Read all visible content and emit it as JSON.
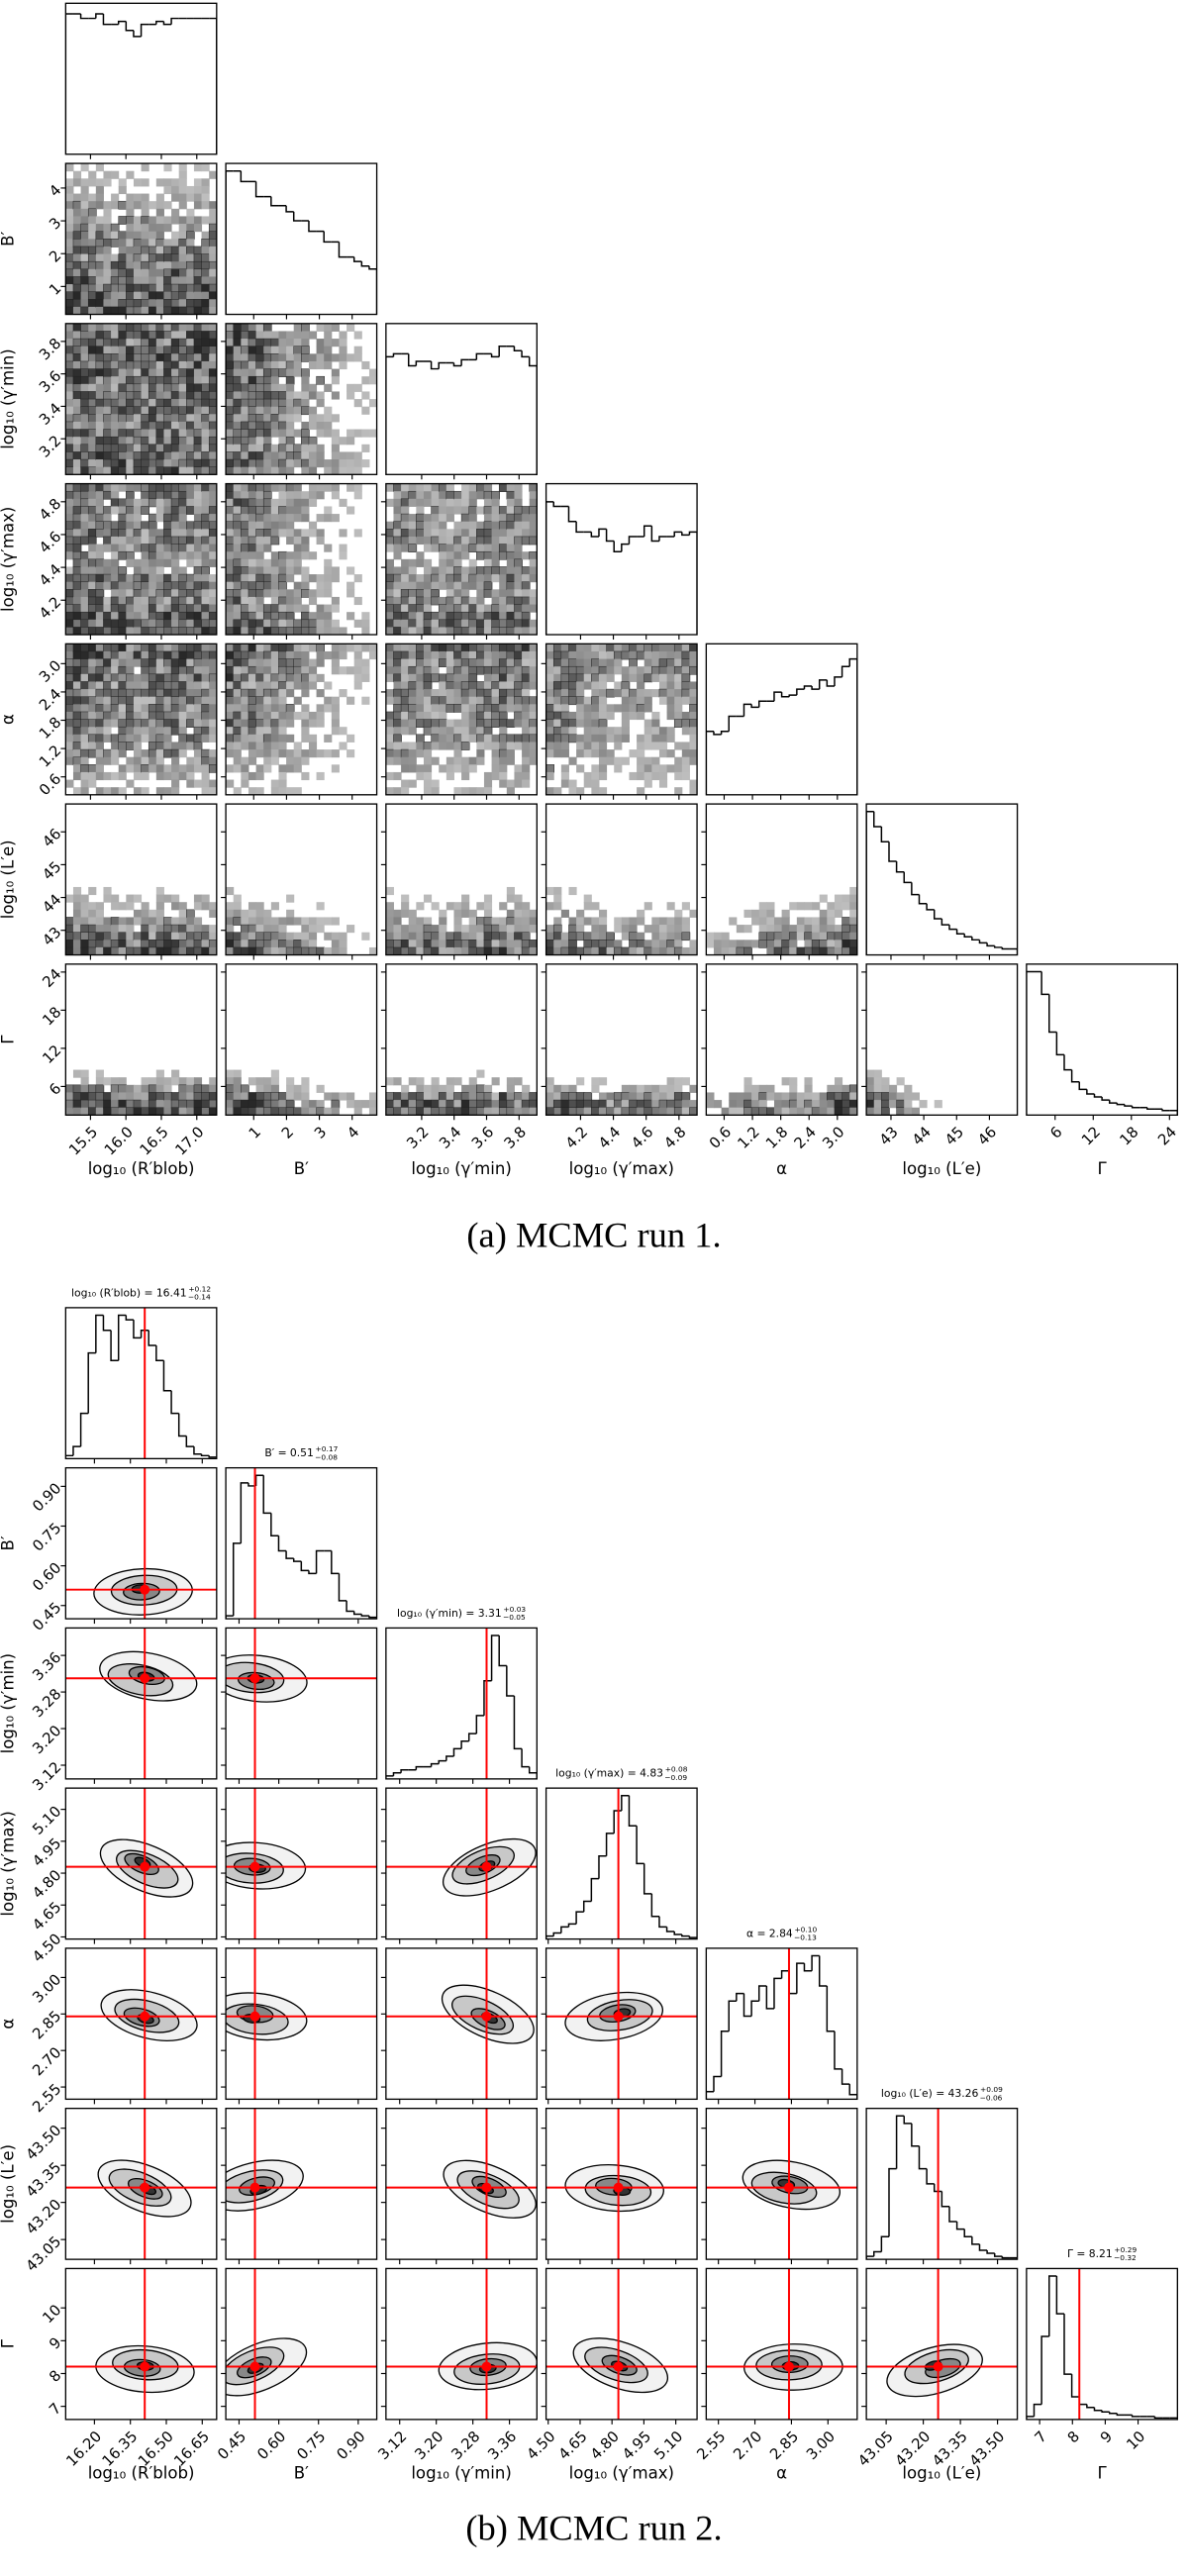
{
  "chart_data": [
    {
      "type": "corner",
      "caption": "(a) MCMC run 1.",
      "hist_ylim": [
        0,
        1
      ],
      "params": [
        {
          "label": "log₁₀ (R′blob)",
          "lim": [
            15.15,
            17.28
          ],
          "ticks": [
            15.5,
            {
              "value": 16.0,
              "label": "16.0"
            },
            16.5,
            {
              "value": 17.0,
              "label": "17.0"
            }
          ],
          "hist": [
            0.93,
            0.93,
            0.9,
            0.9,
            0.93,
            0.86,
            0.86,
            0.88,
            0.82,
            0.78,
            0.86,
            0.86,
            0.88,
            0.86,
            0.9,
            0.9,
            0.9,
            0.9,
            0.9,
            0.9
          ]
        },
        {
          "label": "B′",
          "lim": [
            0.15,
            4.75
          ],
          "ticks": [
            1,
            2,
            3,
            4
          ],
          "hist": [
            0.95,
            0.95,
            0.88,
            0.88,
            0.78,
            0.78,
            0.72,
            0.72,
            0.68,
            0.62,
            0.62,
            0.55,
            0.55,
            0.48,
            0.48,
            0.38,
            0.38,
            0.35,
            0.32,
            0.3
          ]
        },
        {
          "label": "log₁₀ (γ′min)",
          "lim": [
            2.98,
            3.91
          ],
          "ticks": [
            3.2,
            3.4,
            3.6,
            3.8
          ],
          "hist": [
            0.78,
            0.8,
            0.8,
            0.72,
            0.75,
            0.75,
            0.7,
            0.74,
            0.74,
            0.72,
            0.76,
            0.76,
            0.8,
            0.8,
            0.78,
            0.85,
            0.85,
            0.82,
            0.78,
            0.72
          ]
        },
        {
          "label": "log₁₀ (γ′max)",
          "lim": [
            3.99,
            4.91
          ],
          "ticks": [
            4.2,
            4.4,
            4.6,
            4.8
          ],
          "hist": [
            0.88,
            0.85,
            0.85,
            0.75,
            0.68,
            0.68,
            0.65,
            0.7,
            0.62,
            0.55,
            0.6,
            0.65,
            0.65,
            0.72,
            0.62,
            0.65,
            0.65,
            0.68,
            0.66,
            0.68
          ]
        },
        {
          "label": "α",
          "lim": [
            0.22,
            3.42
          ],
          "ticks": [
            0.6,
            1.2,
            1.8,
            2.4,
            {
              "value": 3.0,
              "label": "3.0"
            }
          ],
          "hist": [
            0.42,
            0.4,
            0.42,
            0.52,
            0.52,
            0.6,
            0.58,
            0.62,
            0.62,
            0.68,
            0.65,
            0.66,
            0.7,
            0.72,
            0.7,
            0.76,
            0.72,
            0.78,
            0.85,
            0.9
          ]
        },
        {
          "label": "log₁₀ (L′e)",
          "lim": [
            42.25,
            46.85
          ],
          "ticks": [
            43,
            44,
            45,
            46
          ],
          "hist": [
            0.95,
            0.85,
            0.75,
            0.62,
            0.55,
            0.48,
            0.4,
            0.34,
            0.3,
            0.24,
            0.2,
            0.17,
            0.14,
            0.12,
            0.1,
            0.08,
            0.06,
            0.05,
            0.04,
            0.04
          ]
        },
        {
          "label": "Γ",
          "lim": [
            1.5,
            25.25
          ],
          "ticks": [
            6,
            12,
            18,
            24
          ],
          "hist": [
            0.95,
            0.95,
            0.8,
            0.55,
            0.4,
            0.3,
            0.22,
            0.17,
            0.14,
            0.12,
            0.1,
            0.08,
            0.07,
            0.06,
            0.05,
            0.05,
            0.04,
            0.04,
            0.03,
            0.03
          ]
        }
      ]
    },
    {
      "type": "corner",
      "caption": "(b) MCMC run 2.",
      "hist_ylim": [
        0,
        1
      ],
      "median_color": "#ff0000",
      "params": [
        {
          "label": "log₁₀ (R′blob)",
          "lim": [
            16.08,
            16.71
          ],
          "ticks": [
            {
              "value": 16.2,
              "label": "16.20"
            },
            16.35,
            {
              "value": 16.5,
              "label": "16.50"
            },
            16.65
          ],
          "title": "log₁₀ (R′blob) =",
          "median": 16.41,
          "errors": [
            {
              "value": 0.12,
              "label": "+0.12"
            },
            {
              "value": -0.14,
              "label": "−0.14"
            }
          ],
          "hist": [
            0.02,
            0.08,
            0.3,
            0.7,
            0.95,
            0.85,
            0.65,
            0.95,
            0.92,
            0.8,
            0.85,
            0.75,
            0.65,
            0.45,
            0.3,
            0.15,
            0.08,
            0.03,
            0.02,
            0.01
          ]
        },
        {
          "label": "B′",
          "lim": [
            0.4,
            0.97
          ],
          "ticks": [
            0.45,
            {
              "value": 0.6,
              "label": "0.60"
            },
            0.75,
            {
              "value": 0.9,
              "label": "0.90"
            }
          ],
          "title": "B′ =",
          "median": 0.51,
          "errors": [
            {
              "value": 0.17,
              "label": "+0.17"
            },
            {
              "value": -0.08,
              "label": "−0.08"
            }
          ],
          "hist": [
            0.02,
            0.5,
            0.9,
            0.88,
            0.95,
            0.7,
            0.55,
            0.45,
            0.4,
            0.38,
            0.32,
            0.3,
            0.45,
            0.45,
            0.3,
            0.12,
            0.05,
            0.03,
            0.02,
            0.01
          ]
        },
        {
          "label": "log₁₀ (γ′min)",
          "lim": [
            3.09,
            3.42
          ],
          "ticks": [
            3.12,
            {
              "value": 3.2,
              "label": "3.20"
            },
            3.28,
            3.36
          ],
          "title": "log₁₀ (γ′min) =",
          "median": 3.31,
          "errors": [
            {
              "value": 0.03,
              "label": "+0.03"
            },
            {
              "value": -0.05,
              "label": "−0.05"
            }
          ],
          "hist": [
            0.02,
            0.04,
            0.06,
            0.06,
            0.08,
            0.08,
            0.1,
            0.12,
            0.15,
            0.2,
            0.25,
            0.3,
            0.42,
            0.65,
            0.95,
            0.75,
            0.55,
            0.2,
            0.08,
            0.04
          ]
        },
        {
          "label": "log₁₀ (γ′max)",
          "lim": [
            4.49,
            5.2
          ],
          "ticks": [
            {
              "value": 4.5,
              "label": "4.50"
            },
            4.65,
            {
              "value": 4.8,
              "label": "4.80"
            },
            4.95,
            {
              "value": 5.1,
              "label": "5.10"
            }
          ],
          "title": "log₁₀ (γ′max) =",
          "median": 4.83,
          "errors": [
            {
              "value": 0.08,
              "label": "+0.08"
            },
            {
              "value": -0.09,
              "label": "−0.09"
            }
          ],
          "hist": [
            0.02,
            0.04,
            0.08,
            0.1,
            0.18,
            0.25,
            0.4,
            0.55,
            0.7,
            0.85,
            0.95,
            0.75,
            0.5,
            0.3,
            0.15,
            0.08,
            0.05,
            0.03,
            0.02,
            0.01
          ]
        },
        {
          "label": "α",
          "lim": [
            2.5,
            3.12
          ],
          "ticks": [
            2.55,
            {
              "value": 2.7,
              "label": "2.70"
            },
            2.85,
            {
              "value": 3.0,
              "label": "3.00"
            }
          ],
          "title": "α =",
          "median": 2.84,
          "errors": [
            {
              "value": 0.1,
              "label": "+0.10"
            },
            {
              "value": -0.13,
              "label": "−0.13"
            }
          ],
          "hist": [
            0.05,
            0.15,
            0.45,
            0.65,
            0.7,
            0.55,
            0.65,
            0.75,
            0.6,
            0.8,
            0.85,
            0.7,
            0.9,
            0.85,
            0.95,
            0.75,
            0.45,
            0.2,
            0.1,
            0.03
          ]
        },
        {
          "label": "log₁₀ (L′e)",
          "lim": [
            42.97,
            43.58
          ],
          "ticks": [
            43.05,
            {
              "value": 43.2,
              "label": "43.20"
            },
            43.35,
            {
              "value": 43.5,
              "label": "43.50"
            }
          ],
          "title": "log₁₀ (L′e) =",
          "median": 43.26,
          "errors": [
            {
              "value": 0.09,
              "label": "+0.09"
            },
            {
              "value": -0.06,
              "label": "−0.06"
            }
          ],
          "hist": [
            0.02,
            0.05,
            0.15,
            0.6,
            0.95,
            0.9,
            0.75,
            0.6,
            0.5,
            0.45,
            0.35,
            0.25,
            0.2,
            0.15,
            0.1,
            0.06,
            0.04,
            0.02,
            0.01,
            0.01
          ]
        },
        {
          "label": "Γ",
          "lim": [
            6.6,
            11.2
          ],
          "ticks": [
            7,
            8,
            9,
            10
          ],
          "title": "Γ =",
          "median": 8.21,
          "errors": [
            {
              "value": 0.29,
              "label": "+0.29"
            },
            {
              "value": -0.32,
              "label": "−0.32"
            }
          ],
          "hist": [
            0.02,
            0.1,
            0.55,
            0.95,
            0.7,
            0.3,
            0.15,
            0.1,
            0.08,
            0.06,
            0.05,
            0.04,
            0.03,
            0.03,
            0.02,
            0.02,
            0.02,
            0.01,
            0.01,
            0.01
          ]
        }
      ]
    }
  ]
}
